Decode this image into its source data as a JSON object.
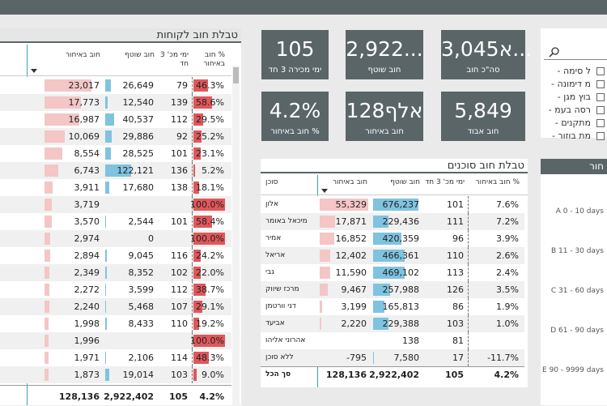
{
  "customers_table": {
    "title": "טבלת חוב לקוחות",
    "columns": [
      "חוב באיחור",
      "חוב שוטף",
      "ימי מכ' 3 חד",
      "% חוב באיחור"
    ],
    "rows": [
      [
        "23,017",
        "26,649",
        "79",
        "46.3%"
      ],
      [
        "17,773",
        "12,540",
        "139",
        "58.6%"
      ],
      [
        "16,987",
        "40,537",
        "112",
        "29.5%"
      ],
      [
        "10,069",
        "29,886",
        "92",
        "25.2%"
      ],
      [
        "8,554",
        "28,525",
        "101",
        "23.1%"
      ],
      [
        "6,743",
        "122,121",
        "136",
        "5.2%"
      ],
      [
        "3,911",
        "17,680",
        "138",
        "18.1%"
      ],
      [
        "3,719",
        null,
        null,
        "100.0%"
      ],
      [
        "3,570",
        "2,544",
        "101",
        "58.4%"
      ],
      [
        "2,974",
        "0",
        null,
        "100.0%"
      ],
      [
        "2,894",
        "9,045",
        "116",
        "24.2%"
      ],
      [
        "2,349",
        "8,352",
        "102",
        "22.0%"
      ],
      [
        "2,272",
        "3,599",
        "112",
        "38.7%"
      ],
      [
        "2,240",
        "5,468",
        "107",
        "29.1%"
      ],
      [
        "1,998",
        "8,433",
        "110",
        "19.2%"
      ],
      [
        "1,996",
        null,
        null,
        "100.0%"
      ],
      [
        "1,971",
        "2,106",
        "114",
        "48.3%"
      ],
      [
        "1,873",
        "19,014",
        "103",
        "9.0%"
      ]
    ],
    "total": [
      "128,136",
      "2,922,402",
      "105",
      "4.2%"
    ]
  },
  "kpis": [
    {
      "value": "105",
      "label": "ימי מכירה 3 חד"
    },
    {
      "value": "2,922...",
      "label": "חוב שוטף"
    },
    {
      "value": "3,045א...",
      "label": "סה\"כ חוב"
    },
    {
      "value": "4.2%",
      "label": "% חוב באיחור"
    },
    {
      "value": "128אלף",
      "label": "חוב באיחור"
    },
    {
      "value": "5,849",
      "label": "חוב אבוד"
    }
  ],
  "agents_table": {
    "title": "טבלת חוב סוכנים",
    "columns": [
      "סוכן",
      "חוב באיחור",
      "חוב שוטף",
      "ימי מכ' 3 חד",
      "% חוב באיחור"
    ],
    "rows": [
      [
        "אלון",
        "55,329",
        "676,237",
        "101",
        "7.6%"
      ],
      [
        "מיכאל באומר",
        "17,871",
        "229,436",
        "111",
        "7.2%"
      ],
      [
        "אמיר",
        "16,852",
        "420,359",
        "96",
        "3.9%"
      ],
      [
        "אריאל",
        "12,402",
        "466,361",
        "110",
        "2.6%"
      ],
      [
        "גבי",
        "11,590",
        "469,102",
        "113",
        "2.4%"
      ],
      [
        "מרכז שיווק",
        "9,467",
        "257,988",
        "126",
        "3.5%"
      ],
      [
        "דני וורטמן",
        "3,199",
        "165,813",
        "86",
        "1.9%"
      ],
      [
        "אביעד",
        "2,220",
        "229,388",
        "103",
        "1.0%"
      ],
      [
        "אהרוני אליהו",
        null,
        "138",
        "81",
        null
      ],
      [
        "ללא סוכן",
        "-795",
        "7,580",
        "17",
        "-11.7%"
      ]
    ],
    "total": [
      "סך הכל",
      "128,136",
      "2,922,402",
      "105",
      "4.2%"
    ]
  },
  "slicer": {
    "items": [
      "ל סימה -",
      "מ דימונה -",
      "בוץ מגן -",
      "רסה בעמ -",
      "מתקנים -",
      "מת בוזור -"
    ]
  },
  "aging": {
    "title": "חור",
    "labels": [
      "A 0 - 10 days",
      "B 11 - 30 days",
      "C 31 - 60 days",
      "D 61 - 90 days",
      "E 90 - 9999 days"
    ]
  }
}
